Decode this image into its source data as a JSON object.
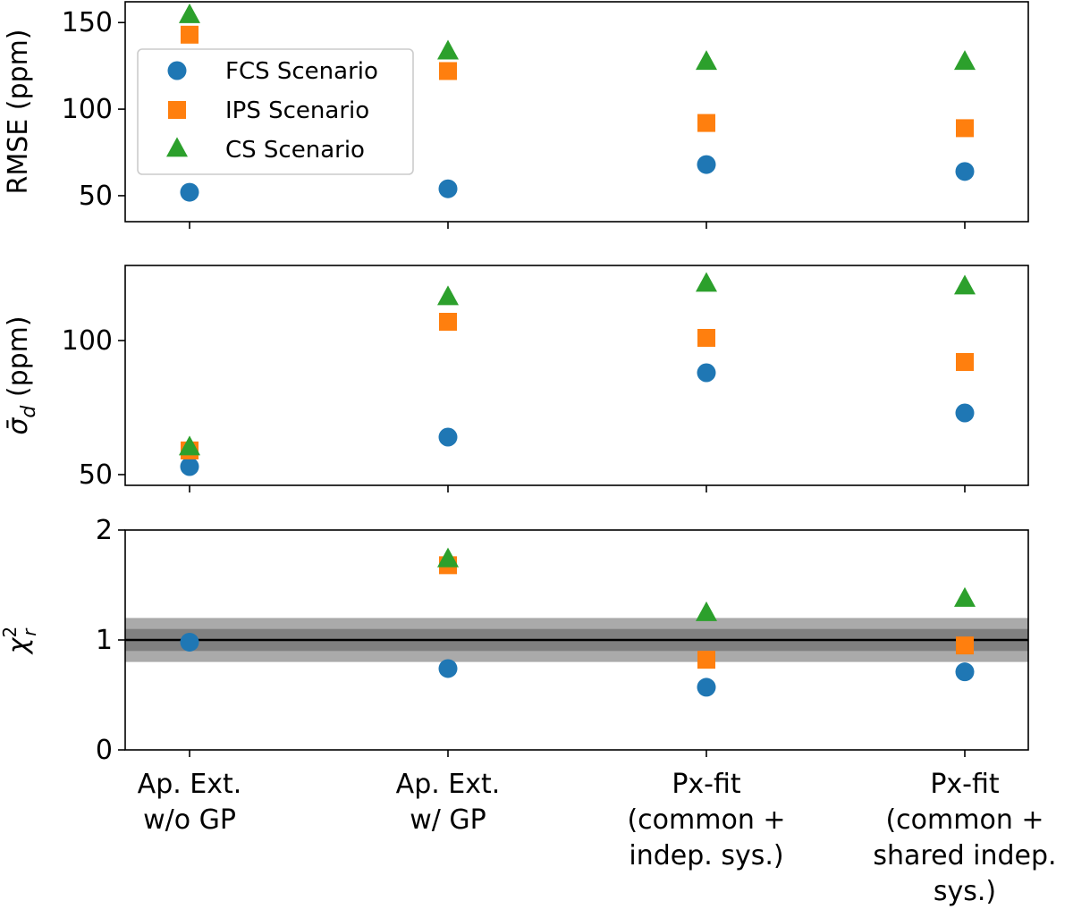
{
  "chart_data": {
    "type": "scatter",
    "categories": [
      [
        "Ap. Ext.",
        "w/o GP"
      ],
      [
        "Ap. Ext.",
        "w/ GP"
      ],
      [
        "Px-fit",
        "(common +",
        "indep. sys.)"
      ],
      [
        "Px-fit",
        "(common +",
        "shared indep.",
        "sys.)"
      ]
    ],
    "series": [
      {
        "name": "FCS Scenario",
        "color": "#1f77b4",
        "marker": "circle"
      },
      {
        "name": "IPS Scenario",
        "color": "#ff7f0e",
        "marker": "square"
      },
      {
        "name": "CS Scenario",
        "color": "#2ca02c",
        "marker": "triangle"
      }
    ],
    "legend": {
      "position": "upper-left",
      "panel": 0
    },
    "panels": [
      {
        "ylabel": "RMSE (ppm)",
        "ylim": [
          35,
          162
        ],
        "yticks": [
          50,
          100,
          150
        ],
        "values": {
          "FCS Scenario": [
            52,
            54,
            68,
            64
          ],
          "IPS Scenario": [
            143,
            122,
            92,
            89
          ],
          "CS Scenario": [
            154,
            133,
            127,
            127
          ]
        }
      },
      {
        "ylabel": "σ̄_d (ppm)",
        "ylabel_main": "σ̄",
        "ylabel_sub": "d",
        "ylabel_rest": " (ppm)",
        "ylim": [
          46,
          128
        ],
        "yticks": [
          50,
          100
        ],
        "values": {
          "FCS Scenario": [
            53,
            64,
            88,
            73
          ],
          "IPS Scenario": [
            59,
            107,
            101,
            92
          ],
          "CS Scenario": [
            60,
            116,
            121,
            120
          ]
        }
      },
      {
        "ylabel": "χ_r^2",
        "ylabel_main": "χ",
        "ylabel_sub": "r",
        "ylabel_sup": "2",
        "ylim": [
          0,
          2
        ],
        "yticks": [
          0,
          1,
          2
        ],
        "reference_line": 1,
        "bands": [
          {
            "low": 0.8,
            "high": 1.2,
            "color": "#aaaaaa"
          },
          {
            "low": 0.9,
            "high": 1.1,
            "color": "#808080"
          }
        ],
        "values": {
          "FCS Scenario": [
            0.98,
            0.74,
            0.57,
            0.71
          ],
          "IPS Scenario": [
            null,
            1.68,
            0.82,
            0.95
          ],
          "CS Scenario": [
            null,
            1.73,
            1.24,
            1.37
          ]
        }
      }
    ]
  }
}
